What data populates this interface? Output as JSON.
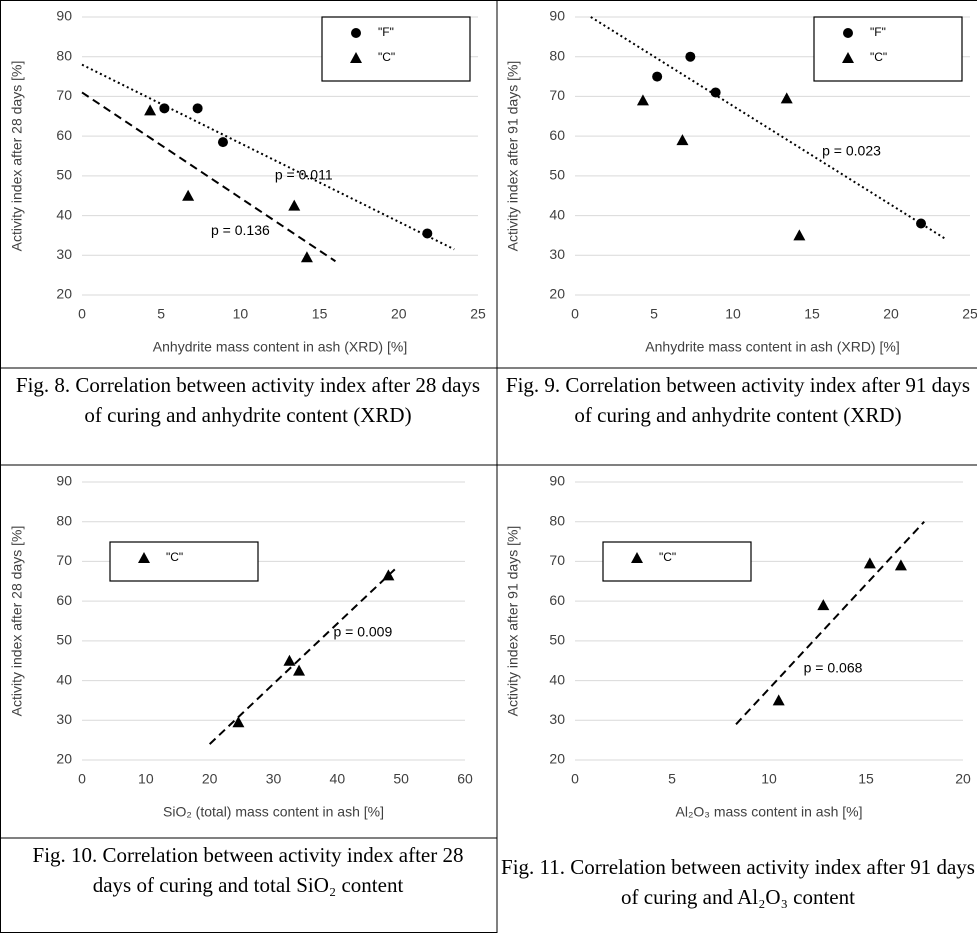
{
  "chart_data": [
    {
      "type": "scatter",
      "caption": "Fig. 8. Correlation between activity index after 28 days of curing and anhydrite content (XRD)",
      "xlabel": "Anhydrite mass content in ash (XRD) [%]",
      "ylabel": "Activity index after 28 days [%]",
      "xlim": [
        0,
        25
      ],
      "ylim": [
        20,
        90
      ],
      "xticks": [
        0,
        5,
        10,
        15,
        20,
        25
      ],
      "yticks": [
        20,
        30,
        40,
        50,
        60,
        70,
        80,
        90
      ],
      "grid": true,
      "legend": "upper right",
      "series": [
        {
          "name": "\"F\"",
          "color": "#000000",
          "marker": "circle",
          "x": [
            5.2,
            7.3,
            8.9,
            21.8
          ],
          "values": [
            67,
            67,
            58.5,
            35.5
          ]
        },
        {
          "name": "\"C\"",
          "color": "#000000",
          "marker": "triangle",
          "x": [
            4.3,
            6.7,
            13.4,
            14.2
          ],
          "values": [
            66.5,
            45,
            42.5,
            29.5
          ]
        }
      ],
      "trendlines": [
        {
          "style": "dotted",
          "x": [
            0,
            23.5
          ],
          "y": [
            78,
            31.5
          ]
        },
        {
          "style": "dashed",
          "x": [
            0,
            16
          ],
          "y": [
            71,
            28.5
          ]
        }
      ],
      "annotations": [
        {
          "text": "p = 0.011",
          "x": 14,
          "y": 50
        },
        {
          "text": "p = 0.136",
          "x": 10,
          "y": 36
        }
      ]
    },
    {
      "type": "scatter",
      "caption": "Fig. 9. Correlation between activity index after 91 days of curing and anhydrite content (XRD)",
      "xlabel": "Anhydrite mass content in ash (XRD) [%]",
      "ylabel": "Activity index after 91 days [%]",
      "xlim": [
        0,
        25
      ],
      "ylim": [
        20,
        90
      ],
      "xticks": [
        0,
        5,
        10,
        15,
        20,
        25
      ],
      "yticks": [
        20,
        30,
        40,
        50,
        60,
        70,
        80,
        90
      ],
      "grid": true,
      "legend": "upper right",
      "series": [
        {
          "name": "\"F\"",
          "color": "#000000",
          "marker": "circle",
          "x": [
            5.2,
            7.3,
            8.9,
            21.9
          ],
          "values": [
            75,
            80,
            71,
            38
          ]
        },
        {
          "name": "\"C\"",
          "color": "#000000",
          "marker": "triangle",
          "x": [
            4.3,
            6.8,
            13.4,
            14.2
          ],
          "values": [
            69,
            59,
            69.5,
            35
          ]
        }
      ],
      "trendlines": [
        {
          "style": "dotted",
          "x": [
            1,
            23.5
          ],
          "y": [
            90,
            34
          ]
        }
      ],
      "annotations": [
        {
          "text": "p = 0.023",
          "x": 17.5,
          "y": 56
        }
      ]
    },
    {
      "type": "scatter",
      "caption": "Fig. 10. Correlation between activity index after 28 days of curing and total SiO₂ content",
      "xlabel": "SiO₂ (total) mass content in ash [%]",
      "ylabel": "Activity index after 28 days [%]",
      "xlim": [
        0,
        60
      ],
      "ylim": [
        20,
        90
      ],
      "xticks": [
        0,
        10,
        20,
        30,
        40,
        50,
        60
      ],
      "yticks": [
        20,
        30,
        40,
        50,
        60,
        70,
        80,
        90
      ],
      "grid": true,
      "legend": "upper left",
      "series": [
        {
          "name": "\"C\"",
          "color": "#000000",
          "marker": "triangle",
          "x": [
            24.5,
            32.5,
            34,
            48
          ],
          "values": [
            29.5,
            45,
            42.5,
            66.5
          ]
        }
      ],
      "trendlines": [
        {
          "style": "dashed",
          "x": [
            20,
            49
          ],
          "y": [
            24,
            68
          ]
        }
      ],
      "annotations": [
        {
          "text": "p = 0.009",
          "x": 44,
          "y": 52
        }
      ]
    },
    {
      "type": "scatter",
      "caption": "Fig. 11. Correlation between activity index after 91 days of curing and Al₂O₃ content",
      "xlabel": "Al₂O₃ mass content in ash [%]",
      "ylabel": "Activity index after 91 days [%]",
      "xlim": [
        0,
        20
      ],
      "ylim": [
        20,
        90
      ],
      "xticks": [
        0,
        5,
        10,
        15,
        20
      ],
      "yticks": [
        20,
        30,
        40,
        50,
        60,
        70,
        80,
        90
      ],
      "grid": true,
      "legend": "upper left",
      "series": [
        {
          "name": "\"C\"",
          "color": "#000000",
          "marker": "triangle",
          "x": [
            10.5,
            12.8,
            15.2,
            16.8
          ],
          "values": [
            35,
            59,
            69.5,
            69
          ]
        }
      ],
      "trendlines": [
        {
          "style": "dashed",
          "x": [
            8.3,
            18
          ],
          "y": [
            29,
            80
          ]
        }
      ],
      "annotations": [
        {
          "text": "p = 0.068",
          "x": 13.3,
          "y": 43
        }
      ]
    }
  ]
}
